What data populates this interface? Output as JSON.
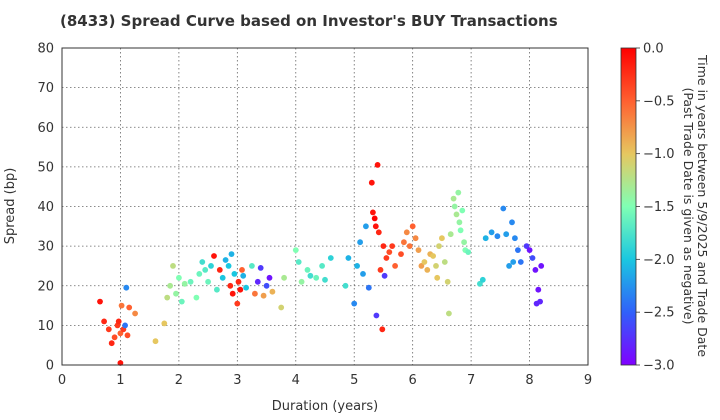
{
  "chart_data": {
    "type": "scatter",
    "title": "(8433)   Spread Curve based on Investor's BUY Transactions",
    "xlabel": "Duration (years)",
    "ylabel": "Spread (bp)",
    "xlim": [
      0,
      9
    ],
    "ylim": [
      0,
      80
    ],
    "xticks": [
      0,
      1,
      2,
      3,
      4,
      5,
      6,
      7,
      8,
      9
    ],
    "yticks": [
      0,
      10,
      20,
      30,
      40,
      50,
      60,
      70,
      80
    ],
    "grid": true,
    "colorbar": {
      "label_line1": "Time in years between 5/9/2025 and Trade Date",
      "label_line2": "(Past Trade Date is given as negative)",
      "range": [
        -3.0,
        0.0
      ],
      "ticks": [
        "0.0",
        "−0.5",
        "−1.0",
        "−1.5",
        "−2.0",
        "−2.5",
        "−3.0"
      ],
      "tick_values": [
        0.0,
        -0.5,
        -1.0,
        -1.5,
        -2.0,
        -2.5,
        -3.0
      ],
      "colormap": "rainbow"
    },
    "points": [
      [
        0.65,
        16,
        -0.1
      ],
      [
        0.72,
        11,
        -0.2
      ],
      [
        0.8,
        9,
        -0.3
      ],
      [
        0.85,
        5.5,
        -0.2
      ],
      [
        0.9,
        7,
        -0.4
      ],
      [
        0.95,
        10,
        -0.3
      ],
      [
        0.97,
        11,
        -0.2
      ],
      [
        1.0,
        0.5,
        -0.1
      ],
      [
        1.0,
        8,
        -0.5
      ],
      [
        1.02,
        15,
        -0.6
      ],
      [
        1.05,
        9,
        -0.3
      ],
      [
        1.08,
        10,
        -2.4
      ],
      [
        1.1,
        19.5,
        -2.3
      ],
      [
        1.12,
        7.5,
        -0.4
      ],
      [
        1.15,
        14.5,
        -0.5
      ],
      [
        1.25,
        13,
        -0.7
      ],
      [
        1.6,
        6,
        -1.0
      ],
      [
        1.75,
        10.5,
        -1.0
      ],
      [
        1.8,
        17,
        -1.2
      ],
      [
        1.85,
        20,
        -1.3
      ],
      [
        1.9,
        25,
        -1.2
      ],
      [
        1.95,
        18,
        -1.4
      ],
      [
        2.0,
        22,
        -1.5
      ],
      [
        2.05,
        16,
        -1.6
      ],
      [
        2.1,
        20.5,
        -1.4
      ],
      [
        2.2,
        21,
        -1.6
      ],
      [
        2.3,
        17,
        -1.5
      ],
      [
        2.35,
        23,
        -1.6
      ],
      [
        2.4,
        26,
        -1.8
      ],
      [
        2.45,
        24,
        -1.7
      ],
      [
        2.5,
        21,
        -1.6
      ],
      [
        2.55,
        25,
        -1.9
      ],
      [
        2.6,
        27.5,
        -0.1
      ],
      [
        2.65,
        19,
        -1.7
      ],
      [
        2.7,
        24,
        -0.2
      ],
      [
        2.75,
        22,
        -2.0
      ],
      [
        2.8,
        26.5,
        -2.1
      ],
      [
        2.85,
        25,
        -2.0
      ],
      [
        2.88,
        20,
        -0.2
      ],
      [
        2.9,
        28,
        -2.1
      ],
      [
        2.92,
        18,
        -0.1
      ],
      [
        2.95,
        23,
        -2.0
      ],
      [
        3.0,
        15.5,
        -0.3
      ],
      [
        3.02,
        21,
        -0.2
      ],
      [
        3.05,
        19,
        -0.1
      ],
      [
        3.08,
        24,
        -0.5
      ],
      [
        3.1,
        22.5,
        -2.1
      ],
      [
        3.15,
        19.5,
        -2.0
      ],
      [
        3.25,
        25,
        -1.7
      ],
      [
        3.3,
        18,
        -0.6
      ],
      [
        3.35,
        21,
        -2.8
      ],
      [
        3.4,
        24.5,
        -2.7
      ],
      [
        3.45,
        17.5,
        -0.8
      ],
      [
        3.5,
        20,
        -2.6
      ],
      [
        3.55,
        22,
        -2.9
      ],
      [
        3.6,
        18.5,
        -0.9
      ],
      [
        3.75,
        14.5,
        -1.1
      ],
      [
        3.8,
        22,
        -1.3
      ],
      [
        4.0,
        29,
        -1.5
      ],
      [
        4.05,
        26,
        -1.7
      ],
      [
        4.1,
        21,
        -1.4
      ],
      [
        4.2,
        24,
        -1.6
      ],
      [
        4.25,
        22.5,
        -1.8
      ],
      [
        4.35,
        22,
        -1.6
      ],
      [
        4.45,
        25,
        -1.7
      ],
      [
        4.5,
        21.5,
        -1.8
      ],
      [
        4.6,
        27,
        -1.9
      ],
      [
        4.85,
        20,
        -1.8
      ],
      [
        4.9,
        27,
        -2.1
      ],
      [
        5.0,
        15.5,
        -2.3
      ],
      [
        5.05,
        25,
        -2.1
      ],
      [
        5.1,
        31,
        -2.2
      ],
      [
        5.15,
        23,
        -2.2
      ],
      [
        5.2,
        35,
        -2.2
      ],
      [
        5.25,
        19.5,
        -2.4
      ],
      [
        5.3,
        46,
        -0.1
      ],
      [
        5.32,
        38.5,
        -0.1
      ],
      [
        5.35,
        37,
        0.0
      ],
      [
        5.37,
        35,
        -0.1
      ],
      [
        5.38,
        12.5,
        -2.7
      ],
      [
        5.4,
        50.5,
        -0.1
      ],
      [
        5.42,
        33.5,
        -0.2
      ],
      [
        5.45,
        24,
        -0.3
      ],
      [
        5.48,
        9,
        -0.2
      ],
      [
        5.5,
        30,
        -0.2
      ],
      [
        5.52,
        22.5,
        -2.7
      ],
      [
        5.55,
        27,
        -0.3
      ],
      [
        5.6,
        28.5,
        -0.4
      ],
      [
        5.65,
        30,
        -0.3
      ],
      [
        5.7,
        25,
        -0.5
      ],
      [
        5.8,
        28,
        -0.4
      ],
      [
        5.85,
        31,
        -0.6
      ],
      [
        5.9,
        33.5,
        -0.7
      ],
      [
        5.95,
        30,
        -0.6
      ],
      [
        6.0,
        35,
        -0.5
      ],
      [
        6.05,
        32,
        -0.7
      ],
      [
        6.1,
        29,
        -0.8
      ],
      [
        6.15,
        25,
        -0.8
      ],
      [
        6.2,
        26,
        -1.0
      ],
      [
        6.25,
        24,
        -0.9
      ],
      [
        6.3,
        28,
        -0.9
      ],
      [
        6.35,
        27.5,
        -1.0
      ],
      [
        6.4,
        25,
        -1.1
      ],
      [
        6.42,
        22,
        -1.0
      ],
      [
        6.45,
        30,
        -1.1
      ],
      [
        6.5,
        32,
        -1.0
      ],
      [
        6.55,
        26,
        -1.2
      ],
      [
        6.6,
        21,
        -1.1
      ],
      [
        6.62,
        13,
        -1.2
      ],
      [
        6.65,
        33,
        -1.3
      ],
      [
        6.7,
        42,
        -1.3
      ],
      [
        6.72,
        40,
        -1.4
      ],
      [
        6.75,
        38,
        -1.3
      ],
      [
        6.78,
        43.5,
        -1.4
      ],
      [
        6.8,
        36,
        -1.4
      ],
      [
        6.82,
        34,
        -1.5
      ],
      [
        6.85,
        39,
        -1.5
      ],
      [
        6.88,
        31,
        -1.4
      ],
      [
        6.9,
        29,
        -1.5
      ],
      [
        6.95,
        28.5,
        -1.6
      ],
      [
        7.15,
        20.5,
        -1.8
      ],
      [
        7.2,
        21.5,
        -1.9
      ],
      [
        7.25,
        32,
        -2.1
      ],
      [
        7.35,
        33.5,
        -2.2
      ],
      [
        7.45,
        32.5,
        -2.3
      ],
      [
        7.55,
        39.5,
        -2.3
      ],
      [
        7.6,
        33,
        -2.2
      ],
      [
        7.65,
        25,
        -2.2
      ],
      [
        7.7,
        36,
        -2.3
      ],
      [
        7.72,
        26,
        -2.2
      ],
      [
        7.75,
        32,
        -2.3
      ],
      [
        7.8,
        29,
        -2.4
      ],
      [
        7.85,
        26,
        -2.4
      ],
      [
        7.95,
        30,
        -2.7
      ],
      [
        8.0,
        29,
        -2.9
      ],
      [
        8.05,
        27,
        -2.6
      ],
      [
        8.1,
        24,
        -2.9
      ],
      [
        8.12,
        15.5,
        -2.8
      ],
      [
        8.15,
        19,
        -2.9
      ],
      [
        8.18,
        16,
        -2.8
      ],
      [
        8.2,
        25,
        -2.9
      ]
    ]
  }
}
